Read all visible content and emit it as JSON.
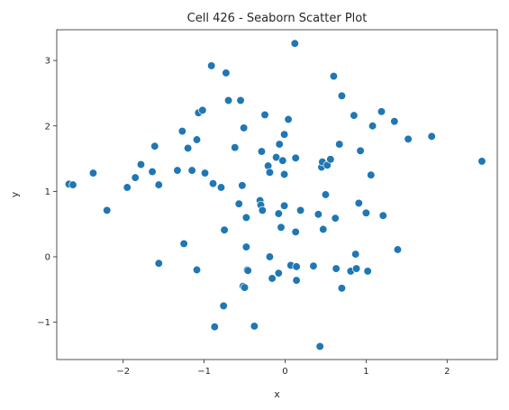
{
  "chart_data": {
    "type": "scatter",
    "title": "Cell 426 - Seaborn Scatter Plot",
    "xlabel": "x",
    "ylabel": "y",
    "xlim": [
      -2.82,
      2.62
    ],
    "ylim": [
      -1.57,
      3.47
    ],
    "xticks": [
      -2,
      -1,
      0,
      1,
      2
    ],
    "yticks": [
      -1,
      0,
      1,
      2,
      3
    ],
    "xtick_labels": [
      "−2",
      "−1",
      "0",
      "1",
      "2"
    ],
    "ytick_labels": [
      "−1",
      "0",
      "1",
      "2",
      "3"
    ],
    "grid": false,
    "legend": null,
    "marker_color": "#1f77b4",
    "points": [
      [
        -2.67,
        1.11
      ],
      [
        -2.62,
        1.1
      ],
      [
        -2.37,
        1.28
      ],
      [
        -2.2,
        0.71
      ],
      [
        -1.95,
        1.06
      ],
      [
        -1.85,
        1.21
      ],
      [
        -1.78,
        1.41
      ],
      [
        -1.64,
        1.3
      ],
      [
        -1.61,
        1.69
      ],
      [
        -1.56,
        1.1
      ],
      [
        -1.56,
        -0.1
      ],
      [
        -1.33,
        1.32
      ],
      [
        -1.27,
        1.92
      ],
      [
        -1.25,
        0.2
      ],
      [
        -1.2,
        1.66
      ],
      [
        -1.15,
        1.32
      ],
      [
        -1.09,
        1.79
      ],
      [
        -1.09,
        -0.2
      ],
      [
        -1.07,
        2.2
      ],
      [
        -1.02,
        2.24
      ],
      [
        -0.99,
        1.28
      ],
      [
        -0.91,
        2.92
      ],
      [
        -0.89,
        1.12
      ],
      [
        -0.87,
        -1.07
      ],
      [
        -0.79,
        1.06
      ],
      [
        -0.76,
        -0.75
      ],
      [
        -0.75,
        0.41
      ],
      [
        -0.73,
        2.81
      ],
      [
        -0.7,
        2.39
      ],
      [
        -0.62,
        1.67
      ],
      [
        -0.57,
        0.81
      ],
      [
        -0.55,
        2.39
      ],
      [
        -0.53,
        1.09
      ],
      [
        -0.51,
        1.97
      ],
      [
        -0.52,
        -0.45
      ],
      [
        -0.5,
        -0.47
      ],
      [
        -0.48,
        0.15
      ],
      [
        -0.48,
        0.6
      ],
      [
        -0.47,
        -0.2
      ],
      [
        -0.46,
        -0.21
      ],
      [
        -0.38,
        -1.06
      ],
      [
        -0.31,
        0.86
      ],
      [
        -0.3,
        0.79
      ],
      [
        -0.29,
        1.61
      ],
      [
        -0.28,
        0.71
      ],
      [
        -0.25,
        2.17
      ],
      [
        -0.21,
        1.39
      ],
      [
        -0.19,
        1.29
      ],
      [
        -0.19,
        0.0
      ],
      [
        -0.16,
        -0.33
      ],
      [
        -0.11,
        1.52
      ],
      [
        -0.08,
        0.66
      ],
      [
        -0.08,
        -0.25
      ],
      [
        -0.07,
        1.72
      ],
      [
        -0.05,
        0.45
      ],
      [
        -0.03,
        1.47
      ],
      [
        -0.01,
        1.87
      ],
      [
        -0.01,
        1.26
      ],
      [
        -0.01,
        0.78
      ],
      [
        0.04,
        2.1
      ],
      [
        0.07,
        -0.13
      ],
      [
        0.12,
        3.26
      ],
      [
        0.13,
        1.51
      ],
      [
        0.13,
        0.38
      ],
      [
        0.14,
        -0.36
      ],
      [
        0.14,
        -0.15
      ],
      [
        0.19,
        0.71
      ],
      [
        0.35,
        -0.14
      ],
      [
        0.41,
        0.65
      ],
      [
        0.43,
        -1.37
      ],
      [
        0.45,
        1.37
      ],
      [
        0.46,
        1.45
      ],
      [
        0.47,
        0.42
      ],
      [
        0.5,
        0.95
      ],
      [
        0.52,
        1.4
      ],
      [
        0.56,
        1.49
      ],
      [
        0.6,
        2.76
      ],
      [
        0.62,
        0.59
      ],
      [
        0.63,
        -0.18
      ],
      [
        0.67,
        1.72
      ],
      [
        0.7,
        2.46
      ],
      [
        0.7,
        -0.48
      ],
      [
        0.81,
        -0.22
      ],
      [
        0.85,
        2.16
      ],
      [
        0.87,
        0.04
      ],
      [
        0.88,
        -0.18
      ],
      [
        0.91,
        0.82
      ],
      [
        0.93,
        1.62
      ],
      [
        1.0,
        0.67
      ],
      [
        1.02,
        -0.22
      ],
      [
        1.06,
        1.25
      ],
      [
        1.08,
        2.0
      ],
      [
        1.19,
        2.22
      ],
      [
        1.21,
        0.63
      ],
      [
        1.35,
        2.07
      ],
      [
        1.39,
        0.11
      ],
      [
        1.52,
        1.8
      ],
      [
        1.81,
        1.84
      ],
      [
        2.43,
        1.46
      ]
    ]
  }
}
